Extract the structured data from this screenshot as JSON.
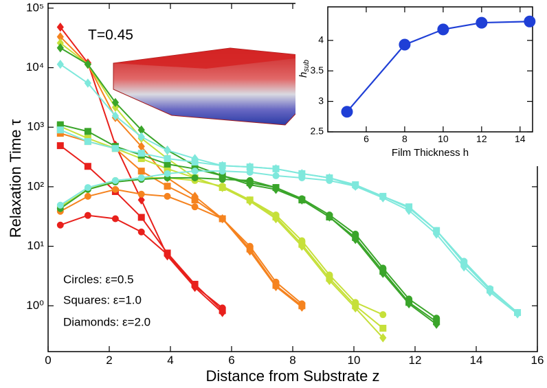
{
  "chart_data": [
    {
      "type": "line",
      "log_y": true,
      "xlabel": "Distance from Substrate z",
      "ylabel": "Relaxation Time τ",
      "xlim": [
        0,
        16
      ],
      "xticks": [
        0,
        2,
        4,
        6,
        8,
        10,
        12,
        14,
        16
      ],
      "ylim": [
        0.17,
        120000
      ],
      "yticks": [
        {
          "value": 1,
          "label": "10⁰"
        },
        {
          "value": 10,
          "label": "10¹"
        },
        {
          "value": 100,
          "label": "10²"
        },
        {
          "value": 1000,
          "label": "10³"
        },
        {
          "value": 10000,
          "label": "10⁴"
        },
        {
          "value": 100000,
          "label": "10⁵"
        }
      ],
      "annotations": [
        "T=0.45",
        "Circles: ε=0.5",
        "Squares: ε=1.0",
        "Diamonds: ε=2.0"
      ],
      "series": [
        {
          "color": "#e8201c",
          "marker": "circle",
          "x": [
            0.4,
            1.3,
            2.2,
            3.05,
            3.9,
            4.8,
            5.7
          ],
          "values": [
            22.7,
            33,
            29,
            17.4,
            7.3,
            2.15,
            0.92
          ]
        },
        {
          "color": "#e8201c",
          "marker": "square",
          "x": [
            0.4,
            1.3,
            2.2,
            3.05,
            3.9,
            4.8,
            5.7
          ],
          "values": [
            490,
            220,
            83,
            30.6,
            7.7,
            2.3,
            0.83
          ]
        },
        {
          "color": "#e8201c",
          "marker": "diamond",
          "x": [
            0.4,
            1.3,
            2.2,
            3.05,
            3.9,
            4.8,
            5.7
          ],
          "values": [
            48000,
            12000,
            500,
            60,
            6.9,
            2.04,
            0.77
          ]
        },
        {
          "color": "#f5831f",
          "marker": "circle",
          "x": [
            0.4,
            1.3,
            2.2,
            3.05,
            3.9,
            4.8,
            5.7,
            6.6,
            7.45,
            8.3
          ],
          "values": [
            38.6,
            69,
            90,
            75,
            69,
            46,
            29,
            10,
            2.5,
            1.08
          ]
        },
        {
          "color": "#f5831f",
          "marker": "square",
          "x": [
            0.4,
            1.3,
            2.2,
            3.05,
            3.9,
            4.8,
            5.7,
            6.6,
            7.45,
            8.3
          ],
          "values": [
            790,
            575,
            440,
            183,
            102,
            60,
            29,
            9,
            2.2,
            1
          ]
        },
        {
          "color": "#f5831f",
          "marker": "diamond",
          "x": [
            0.4,
            1.3,
            2.2,
            3.05,
            3.9,
            4.8,
            5.7,
            6.6,
            7.45,
            8.3
          ],
          "values": [
            33000,
            11400,
            1450,
            475,
            141,
            69,
            29,
            8.3,
            2.1,
            0.95
          ]
        },
        {
          "color": "#c6e03a",
          "marker": "circle",
          "x": [
            0.4,
            1.3,
            2.2,
            3.05,
            3.9,
            4.8,
            5.7,
            6.6,
            7.45,
            8.3,
            9.2,
            10.05,
            10.95
          ],
          "values": [
            46,
            90,
            127,
            141,
            141,
            127,
            102,
            60,
            33.6,
            12.4,
            3.3,
            1.14,
            0.71
          ]
        },
        {
          "color": "#c6e03a",
          "marker": "square",
          "x": [
            0.4,
            1.3,
            2.2,
            3.05,
            3.9,
            4.8,
            5.7,
            6.6,
            7.45,
            8.3,
            9.2,
            10.05,
            10.95
          ],
          "values": [
            1030,
            650,
            440,
            297,
            200,
            141,
            97,
            60,
            31,
            10.8,
            2.9,
            1,
            0.42
          ]
        },
        {
          "color": "#c6e03a",
          "marker": "diamond",
          "x": [
            0.4,
            1.3,
            2.2,
            3.05,
            3.9,
            4.8,
            5.7,
            6.6,
            7.45,
            8.3,
            9.2,
            10.05,
            10.95
          ],
          "values": [
            26000,
            11400,
            2160,
            650,
            297,
            141,
            97,
            57,
            29,
            10,
            2.66,
            0.92,
            0.29
          ]
        },
        {
          "color": "#3aa52a",
          "marker": "circle",
          "x": [
            0.4,
            1.3,
            2.2,
            3.05,
            3.9,
            4.8,
            5.7,
            6.6,
            7.45,
            8.3,
            9.2,
            10.05,
            10.95,
            11.8,
            12.7
          ],
          "values": [
            43,
            90,
            120,
            133,
            141,
            141,
            133,
            127,
            97,
            63,
            33.6,
            16,
            4.3,
            1.3,
            0.62
          ]
        },
        {
          "color": "#3aa52a",
          "marker": "square",
          "x": [
            0.4,
            1.3,
            2.2,
            3.05,
            3.9,
            4.8,
            5.7,
            6.6,
            7.45,
            8.3,
            9.2,
            10.05,
            10.95,
            11.8,
            12.7
          ],
          "values": [
            1100,
            850,
            475,
            340,
            240,
            200,
            153,
            117,
            97,
            60,
            31,
            14,
            3.8,
            1.14,
            0.54
          ]
        },
        {
          "color": "#3aa52a",
          "marker": "diamond",
          "x": [
            0.4,
            1.3,
            2.2,
            3.05,
            3.9,
            4.8,
            5.7,
            6.6,
            7.45,
            8.3,
            9.2,
            10.05,
            10.95,
            11.8,
            12.7
          ],
          "values": [
            21500,
            11400,
            2600,
            900,
            410,
            226,
            153,
            108,
            90,
            60,
            31,
            13,
            3.5,
            1.08,
            0.49
          ]
        },
        {
          "color": "#7fe8dc",
          "marker": "circle",
          "x": [
            0.4,
            1.3,
            2.2,
            3.05,
            3.9,
            4.8,
            5.7,
            6.6,
            7.45,
            8.3,
            9.2,
            10.05,
            10.95,
            11.8,
            12.7,
            13.6,
            14.45,
            15.35
          ],
          "values": [
            49,
            97,
            127,
            141,
            166,
            183,
            183,
            175,
            153,
            141,
            127,
            102,
            69,
            44,
            18.4,
            5.6,
            1.94,
            0.77
          ]
        },
        {
          "color": "#7fe8dc",
          "marker": "square",
          "x": [
            0.4,
            1.3,
            2.2,
            3.05,
            3.9,
            4.8,
            5.7,
            6.6,
            7.45,
            8.3,
            9.2,
            10.05,
            10.95,
            11.8,
            12.7,
            13.6,
            14.45,
            15.35
          ],
          "values": [
            900,
            575,
            440,
            365,
            297,
            260,
            226,
            215,
            200,
            166,
            141,
            108,
            69,
            46,
            18.4,
            5.2,
            1.84,
            0.77
          ]
        },
        {
          "color": "#7fe8dc",
          "marker": "diamond",
          "x": [
            0.4,
            1.3,
            2.2,
            3.05,
            3.9,
            4.8,
            5.7,
            6.6,
            7.45,
            8.3,
            9.2,
            10.05,
            10.95,
            11.8,
            12.7,
            13.6,
            14.45,
            15.35
          ],
          "values": [
            11400,
            5500,
            1550,
            690,
            410,
            297,
            226,
            215,
            200,
            166,
            141,
            102,
            65,
            40,
            16,
            4.5,
            1.7,
            0.73
          ]
        }
      ]
    },
    {
      "type": "line",
      "xlabel": "Film Thickness h",
      "ylabel": "h",
      "ylabel_sub": "sub",
      "xlim": [
        4,
        14.65
      ],
      "xticks": [
        6,
        8,
        10,
        12,
        14
      ],
      "ylim": [
        2.5,
        4.55
      ],
      "yticks": [
        2.5,
        3,
        3.5,
        4
      ],
      "color": "#1f3fd6",
      "marker": "circle",
      "x": [
        5,
        8,
        10,
        12,
        14.5
      ],
      "values": [
        2.83,
        3.93,
        4.18,
        4.29,
        4.31
      ]
    }
  ]
}
